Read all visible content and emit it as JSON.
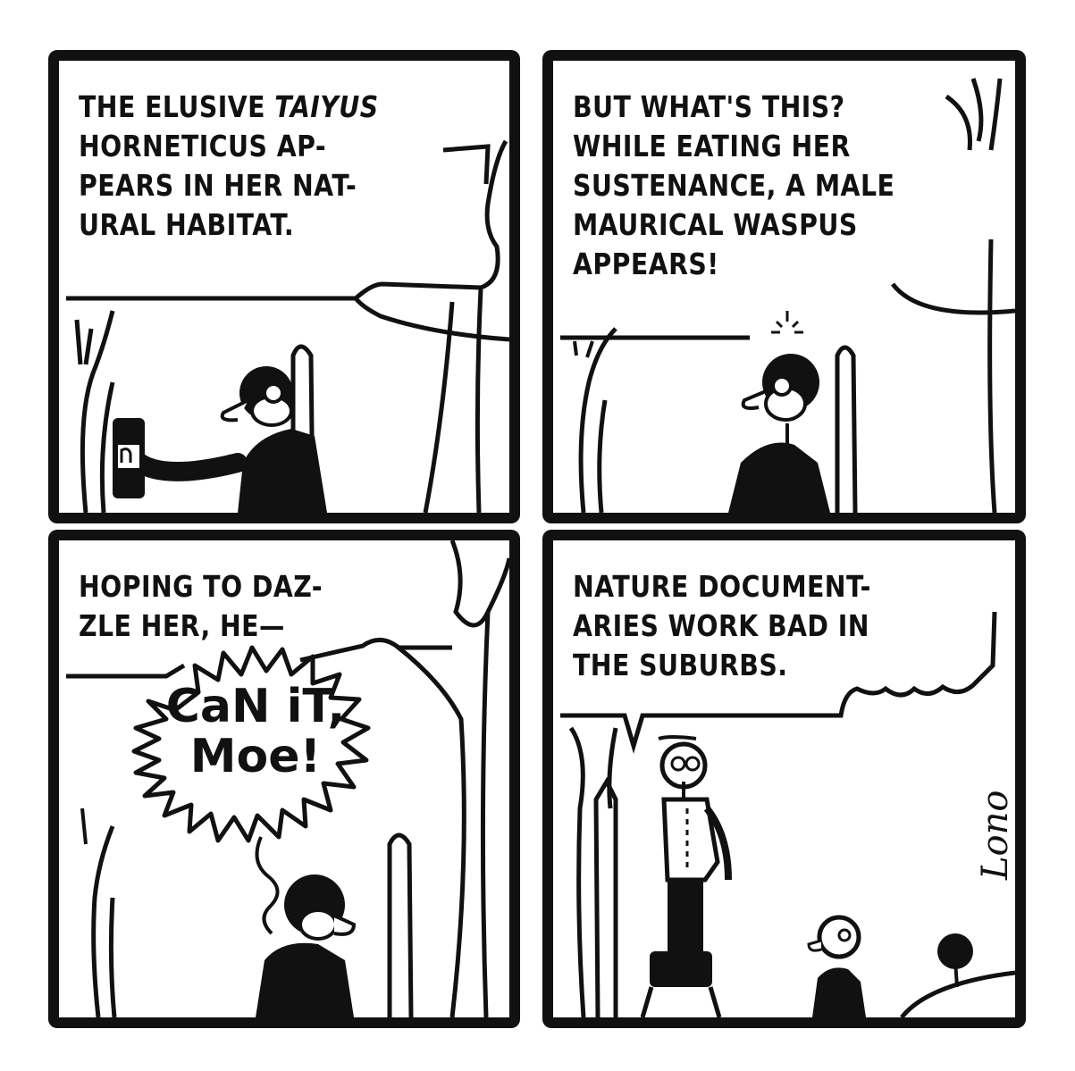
{
  "comic": {
    "panels": [
      {
        "id": "panel-1",
        "caption_lines": [
          "THE ELUSIVE ",
          "HORNETICUS AP-",
          "PEARS IN HER NAT-",
          "URAL HABITAT."
        ],
        "caption_italic_word": "TAIYUS"
      },
      {
        "id": "panel-2",
        "caption_lines": [
          "BUT WHAT'S THIS?",
          "WHILE EATING HER",
          "SUSTENANCE, A MALE",
          "MAURICAL WASPUS",
          "APPEARS!"
        ]
      },
      {
        "id": "panel-3",
        "caption_lines": [
          "HOPING TO DAZ-",
          "ZLE HER, HE—"
        ],
        "shout_lines": [
          "CaN iT,",
          "Moe!"
        ]
      },
      {
        "id": "panel-4",
        "caption_lines": [
          "NATURE DOCUMENT-",
          "ARIES WORK BAD IN",
          "THE SUBURBS."
        ],
        "signature": "Lono"
      }
    ],
    "colors": {
      "ink": "#111111",
      "paper": "#ffffff"
    }
  }
}
